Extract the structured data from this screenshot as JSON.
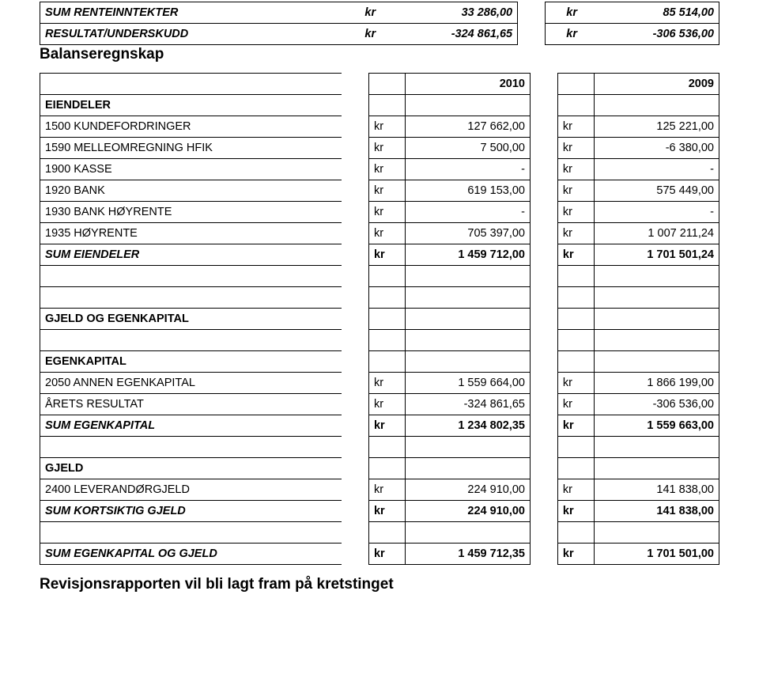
{
  "top": {
    "rows": [
      {
        "label": "SUM RENTEINNTEKTER",
        "a_unit": "kr",
        "a_val": "33 286,00",
        "b_unit": "kr",
        "b_val": "85 514,00"
      },
      {
        "label": "RESULTAT/UNDERSKUDD",
        "a_unit": "kr",
        "a_val": "-324 861,65",
        "b_unit": "kr",
        "b_val": "-306 536,00"
      }
    ]
  },
  "subheading": "Balanseregnskap",
  "year_headers": {
    "a": "2010",
    "b": "2009"
  },
  "sections": [
    {
      "style": "section",
      "label": "EIENDELER"
    },
    {
      "style": "row",
      "label": "1500 KUNDEFORDRINGER",
      "a_unit": "kr",
      "a_val": "127 662,00",
      "b_unit": "kr",
      "b_val": "125 221,00"
    },
    {
      "style": "row",
      "label": "1590 MELLEOMREGNING HFIK",
      "a_unit": "kr",
      "a_val": "7 500,00",
      "b_unit": "kr",
      "b_val": "-6 380,00"
    },
    {
      "style": "row",
      "label": "1900 KASSE",
      "a_unit": "kr",
      "a_val": "-",
      "b_unit": "kr",
      "b_val": "-"
    },
    {
      "style": "row",
      "label": "1920 BANK",
      "a_unit": "kr",
      "a_val": "619 153,00",
      "b_unit": "kr",
      "b_val": "575 449,00"
    },
    {
      "style": "row",
      "label": "1930 BANK HØYRENTE",
      "a_unit": "kr",
      "a_val": "-",
      "b_unit": "kr",
      "b_val": "-"
    },
    {
      "style": "row",
      "label": "1935 HØYRENTE",
      "a_unit": "kr",
      "a_val": "705 397,00",
      "b_unit": "kr",
      "b_val": "1 007 211,24"
    },
    {
      "style": "bolditalic",
      "label": "SUM EIENDELER",
      "a_unit": "kr",
      "a_val": "1 459 712,00",
      "b_unit": "kr",
      "b_val": "1 701 501,24"
    },
    {
      "style": "blank"
    },
    {
      "style": "blank"
    },
    {
      "style": "section",
      "label": "GJELD OG EGENKAPITAL"
    },
    {
      "style": "blank"
    },
    {
      "style": "section",
      "label": "EGENKAPITAL"
    },
    {
      "style": "row",
      "label": "2050 ANNEN EGENKAPITAL",
      "a_unit": "kr",
      "a_val": "1 559 664,00",
      "b_unit": "kr",
      "b_val": "1 866 199,00"
    },
    {
      "style": "row",
      "label": "ÅRETS RESULTAT",
      "a_unit": "kr",
      "a_val": "-324 861,65",
      "b_unit": "kr",
      "b_val": "-306 536,00"
    },
    {
      "style": "bolditalic",
      "label": "SUM EGENKAPITAL",
      "a_unit": "kr",
      "a_val": "1 234 802,35",
      "b_unit": "kr",
      "b_val": "1 559 663,00"
    },
    {
      "style": "blank"
    },
    {
      "style": "section",
      "label": "GJELD"
    },
    {
      "style": "row",
      "label": "2400 LEVERANDØRGJELD",
      "a_unit": "kr",
      "a_val": "224 910,00",
      "b_unit": "kr",
      "b_val": "141 838,00"
    },
    {
      "style": "bolditalic",
      "label": "SUM KORTSIKTIG GJELD",
      "a_unit": "kr",
      "a_val": "224 910,00",
      "b_unit": "kr",
      "b_val": "141 838,00"
    },
    {
      "style": "blank"
    },
    {
      "style": "bolditalic",
      "label": "SUM EGENKAPITAL OG GJELD",
      "a_unit": "kr",
      "a_val": "1 459 712,35",
      "b_unit": "kr",
      "b_val": "1 701 501,00"
    }
  ],
  "footer_note": "Revisjonsrapporten vil bli lagt fram på kretstinget"
}
